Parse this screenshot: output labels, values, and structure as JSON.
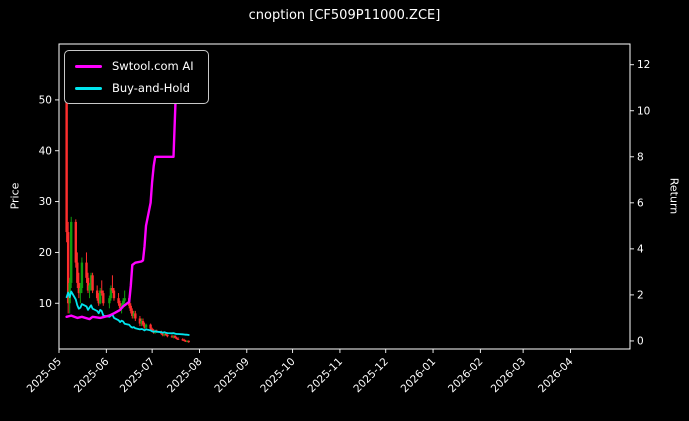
{
  "header": {
    "title": "cnoption [CF509P11000.ZCE]"
  },
  "axes": {
    "left_label": "Price",
    "right_label": "Return"
  },
  "legend": {
    "items": [
      {
        "label": "Swtool.com AI",
        "color": "#ff00ff"
      },
      {
        "label": "Buy-and-Hold",
        "color": "#00e5ee"
      }
    ]
  },
  "chart_data": {
    "type": "candlestick+line",
    "title": "cnoption [CF509P11000.ZCE]",
    "xlabel": "",
    "ylabel_left": "Price",
    "ylabel_right": "Return",
    "grid": false,
    "legend_position": "upper left",
    "xlim": [
      "2025-05-01",
      "2026-05-10"
    ],
    "x_ticks": [
      "2025-05",
      "2025-06",
      "2025-07",
      "2025-08",
      "2025-09",
      "2025-10",
      "2025-11",
      "2025-12",
      "2026-01",
      "2026-02",
      "2026-03",
      "2026-04"
    ],
    "price_ylim": [
      1,
      61
    ],
    "price_ticks": [
      10,
      20,
      30,
      40,
      50
    ],
    "return_ylim": [
      -0.35,
      12.9
    ],
    "return_ticks": [
      0,
      2,
      4,
      6,
      8,
      10,
      12
    ],
    "colors": {
      "up": "#0f9d0f",
      "down": "#ff2d2d",
      "ai_line": "#ff00ff",
      "buy_hold_line": "#00e5ee",
      "background": "#000000",
      "text": "#ffffff",
      "frame": "#ffffff"
    },
    "candles": [
      [
        "2025-05-06",
        50,
        57,
        22,
        24
      ],
      [
        "2025-05-07",
        24,
        26,
        8,
        10
      ],
      [
        "2025-05-08",
        10,
        15,
        8,
        14
      ],
      [
        "2025-05-09",
        14,
        27,
        13,
        26
      ],
      [
        "2025-05-12",
        26,
        26.5,
        17,
        18
      ],
      [
        "2025-05-13",
        18,
        20,
        13,
        14
      ],
      [
        "2025-05-14",
        14,
        16,
        11,
        12
      ],
      [
        "2025-05-15",
        12,
        14,
        10,
        13
      ],
      [
        "2025-05-16",
        13,
        19,
        12,
        18
      ],
      [
        "2025-05-19",
        18,
        20,
        14,
        15
      ],
      [
        "2025-05-20",
        15,
        16,
        12,
        12.5
      ],
      [
        "2025-05-21",
        12.5,
        14,
        11,
        13.5
      ],
      [
        "2025-05-22",
        13.5,
        16,
        12.5,
        15.5
      ],
      [
        "2025-05-23",
        15.5,
        16,
        12,
        12.5
      ],
      [
        "2025-05-26",
        12.5,
        13.5,
        10.5,
        11
      ],
      [
        "2025-05-27",
        11,
        12,
        9.5,
        10
      ],
      [
        "2025-05-28",
        10,
        13,
        9.8,
        12.5
      ],
      [
        "2025-05-29",
        12.5,
        14.5,
        11.5,
        12
      ],
      [
        "2025-05-30",
        12,
        12.5,
        9.5,
        10
      ],
      [
        "2025-06-03",
        10,
        11.5,
        9,
        11
      ],
      [
        "2025-06-04",
        11,
        13.5,
        10.5,
        13
      ],
      [
        "2025-06-05",
        13,
        15.5,
        12,
        12.5
      ],
      [
        "2025-06-06",
        12.5,
        13,
        10.5,
        11
      ],
      [
        "2025-06-09",
        11,
        12,
        9.5,
        10
      ],
      [
        "2025-06-10",
        10,
        10.5,
        8.5,
        9
      ],
      [
        "2025-06-11",
        9,
        10,
        8,
        9.5
      ],
      [
        "2025-06-12",
        9.5,
        11,
        9,
        10.5
      ],
      [
        "2025-06-13",
        10.5,
        12.5,
        10,
        11
      ],
      [
        "2025-06-16",
        11,
        11.5,
        9,
        9.5
      ],
      [
        "2025-06-17",
        9.5,
        10,
        8,
        8.5
      ],
      [
        "2025-06-18",
        8.5,
        9,
        7,
        7.5
      ],
      [
        "2025-06-19",
        7.5,
        8.5,
        7,
        8
      ],
      [
        "2025-06-20",
        8,
        8.5,
        6.5,
        7
      ],
      [
        "2025-06-23",
        7,
        7.5,
        5.5,
        6
      ],
      [
        "2025-06-24",
        6,
        7,
        5.5,
        6.5
      ],
      [
        "2025-06-25",
        6.5,
        7,
        5.5,
        5.8
      ],
      [
        "2025-06-26",
        5.8,
        6.2,
        5,
        5.2
      ],
      [
        "2025-06-27",
        5.2,
        6,
        5,
        5.8
      ],
      [
        "2025-06-30",
        5.8,
        6,
        4.8,
        5
      ],
      [
        "2025-07-01",
        5,
        5.2,
        4.3,
        4.5
      ],
      [
        "2025-07-02",
        4.5,
        4.9,
        4,
        4.2
      ],
      [
        "2025-07-03",
        4.2,
        4.8,
        4,
        4.6
      ],
      [
        "2025-07-04",
        4.6,
        4.8,
        4.2,
        4.4
      ],
      [
        "2025-07-07",
        4.4,
        4.6,
        3.8,
        4
      ],
      [
        "2025-07-08",
        4,
        4.2,
        3.5,
        3.7
      ],
      [
        "2025-07-09",
        3.7,
        4.1,
        3.5,
        4
      ],
      [
        "2025-07-10",
        4,
        4.2,
        3.6,
        3.8
      ],
      [
        "2025-07-11",
        3.8,
        3.9,
        3.3,
        3.5
      ],
      [
        "2025-07-14",
        3.5,
        3.8,
        3.2,
        3.4
      ],
      [
        "2025-07-15",
        3.4,
        3.7,
        3.1,
        3.6
      ],
      [
        "2025-07-16",
        3.6,
        3.7,
        3.1,
        3.2
      ],
      [
        "2025-07-17",
        3.2,
        3.4,
        2.9,
        3
      ],
      [
        "2025-07-18",
        3,
        3.3,
        2.8,
        2.9
      ],
      [
        "2025-07-21",
        2.9,
        3.1,
        2.6,
        2.8
      ],
      [
        "2025-07-22",
        2.8,
        3,
        2.5,
        2.6
      ],
      [
        "2025-07-23",
        2.6,
        2.8,
        2.4,
        2.5
      ],
      [
        "2025-07-24",
        2.5,
        2.7,
        2.3,
        2.6
      ],
      [
        "2025-07-25",
        2.6,
        2.7,
        2.2,
        2.4
      ]
    ],
    "series": [
      {
        "name": "Swtool.com AI",
        "axis": "return",
        "color": "#ff00ff",
        "points": [
          [
            "2025-05-06",
            1.05
          ],
          [
            "2025-05-09",
            1.1
          ],
          [
            "2025-05-13",
            1.0
          ],
          [
            "2025-05-16",
            1.05
          ],
          [
            "2025-05-21",
            0.95
          ],
          [
            "2025-05-23",
            1.05
          ],
          [
            "2025-05-28",
            1.0
          ],
          [
            "2025-06-03",
            1.1
          ],
          [
            "2025-06-06",
            1.2
          ],
          [
            "2025-06-10",
            1.35
          ],
          [
            "2025-06-12",
            1.5
          ],
          [
            "2025-06-16",
            1.7
          ],
          [
            "2025-06-17",
            2.4
          ],
          [
            "2025-06-18",
            3.3
          ],
          [
            "2025-06-20",
            3.4
          ],
          [
            "2025-06-24",
            3.45
          ],
          [
            "2025-06-25",
            3.5
          ],
          [
            "2025-06-26",
            4.1
          ],
          [
            "2025-06-27",
            5.0
          ],
          [
            "2025-06-30",
            6.0
          ],
          [
            "2025-07-01",
            6.9
          ],
          [
            "2025-07-02",
            7.6
          ],
          [
            "2025-07-03",
            8.0
          ],
          [
            "2025-07-08",
            8.0
          ],
          [
            "2025-07-11",
            8.0
          ],
          [
            "2025-07-15",
            8.0
          ],
          [
            "2025-07-16",
            9.8
          ],
          [
            "2025-07-17",
            11.7
          ],
          [
            "2025-07-18",
            11.7
          ],
          [
            "2025-07-21",
            11.7
          ]
        ]
      },
      {
        "name": "Buy-and-Hold",
        "axis": "return",
        "color": "#00e5ee",
        "points": [
          [
            "2025-05-06",
            1.9
          ],
          [
            "2025-05-07",
            2.1
          ],
          [
            "2025-05-08",
            1.9
          ],
          [
            "2025-05-09",
            2.15
          ],
          [
            "2025-05-12",
            1.8
          ],
          [
            "2025-05-13",
            1.55
          ],
          [
            "2025-05-14",
            1.4
          ],
          [
            "2025-05-15",
            1.45
          ],
          [
            "2025-05-16",
            1.6
          ],
          [
            "2025-05-19",
            1.5
          ],
          [
            "2025-05-20",
            1.35
          ],
          [
            "2025-05-21",
            1.45
          ],
          [
            "2025-05-22",
            1.55
          ],
          [
            "2025-05-23",
            1.4
          ],
          [
            "2025-05-26",
            1.3
          ],
          [
            "2025-05-27",
            1.2
          ],
          [
            "2025-05-28",
            1.35
          ],
          [
            "2025-05-29",
            1.3
          ],
          [
            "2025-05-30",
            1.1
          ],
          [
            "2025-06-03",
            1.05
          ],
          [
            "2025-06-04",
            1.1
          ],
          [
            "2025-06-05",
            1.15
          ],
          [
            "2025-06-06",
            1.0
          ],
          [
            "2025-06-09",
            0.9
          ],
          [
            "2025-06-10",
            0.82
          ],
          [
            "2025-06-11",
            0.88
          ],
          [
            "2025-06-12",
            0.85
          ],
          [
            "2025-06-13",
            0.75
          ],
          [
            "2025-06-16",
            0.7
          ],
          [
            "2025-06-17",
            0.62
          ],
          [
            "2025-06-18",
            0.58
          ],
          [
            "2025-06-19",
            0.6
          ],
          [
            "2025-06-20",
            0.55
          ],
          [
            "2025-06-23",
            0.5
          ],
          [
            "2025-06-24",
            0.52
          ],
          [
            "2025-06-25",
            0.5
          ],
          [
            "2025-06-26",
            0.46
          ],
          [
            "2025-06-27",
            0.5
          ],
          [
            "2025-06-30",
            0.46
          ],
          [
            "2025-07-01",
            0.42
          ],
          [
            "2025-07-02",
            0.4
          ],
          [
            "2025-07-03",
            0.42
          ],
          [
            "2025-07-04",
            0.4
          ],
          [
            "2025-07-07",
            0.38
          ],
          [
            "2025-07-08",
            0.36
          ],
          [
            "2025-07-09",
            0.38
          ],
          [
            "2025-07-10",
            0.36
          ],
          [
            "2025-07-11",
            0.34
          ],
          [
            "2025-07-14",
            0.33
          ],
          [
            "2025-07-15",
            0.34
          ],
          [
            "2025-07-16",
            0.32
          ],
          [
            "2025-07-17",
            0.3
          ],
          [
            "2025-07-18",
            0.3
          ],
          [
            "2025-07-21",
            0.29
          ],
          [
            "2025-07-22",
            0.28
          ],
          [
            "2025-07-23",
            0.27
          ],
          [
            "2025-07-24",
            0.27
          ],
          [
            "2025-07-25",
            0.26
          ]
        ]
      }
    ]
  }
}
